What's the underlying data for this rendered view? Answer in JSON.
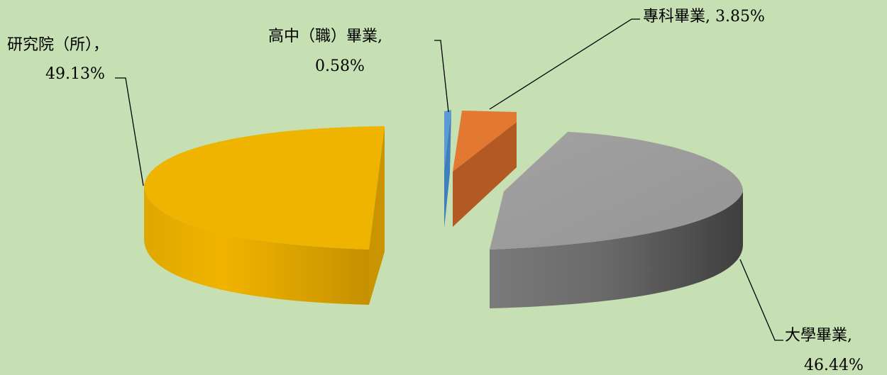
{
  "chart_data": {
    "type": "pie",
    "style": "3d-exploded",
    "title": "",
    "slices": [
      {
        "label": "高中（職）畢業",
        "value": 0.58,
        "label_text": "0.58%",
        "color": "#5b9bd5"
      },
      {
        "label": "專科畢業",
        "value": 3.85,
        "label_text": "3.85%",
        "color": "#ed7d31"
      },
      {
        "label": "大學畢業",
        "value": 46.44,
        "label_text": "46.44%",
        "color": "#a5a5a5"
      },
      {
        "label": "研究院（所）",
        "value": 49.13,
        "label_text": "49.13%",
        "color": "#ffc000"
      }
    ],
    "legend": false
  },
  "background_color": "#c6dfb3"
}
